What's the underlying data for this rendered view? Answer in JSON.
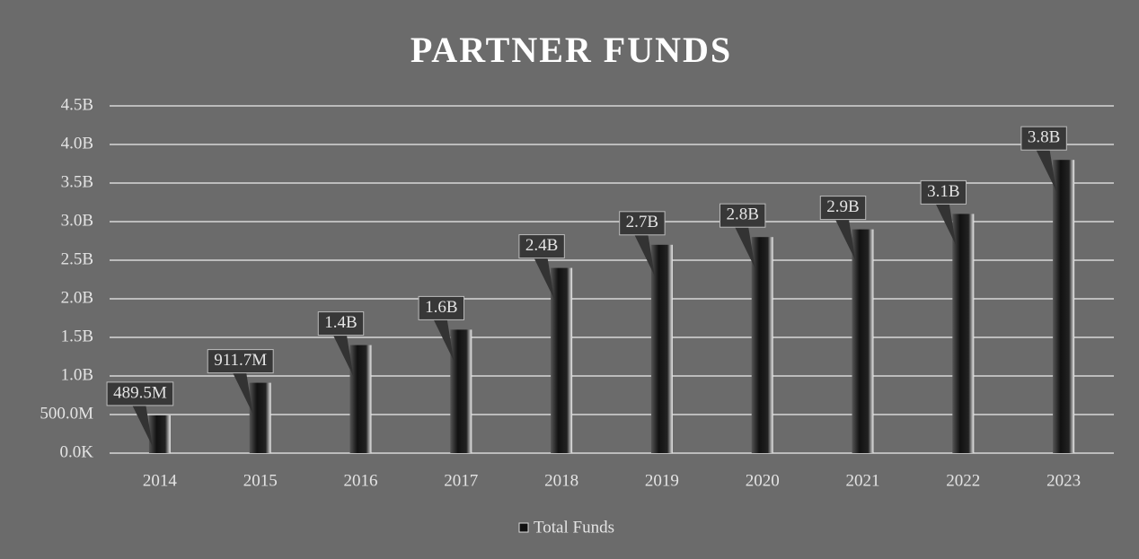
{
  "chart_data": {
    "type": "bar",
    "title": "PARTNER FUNDS",
    "categories": [
      "2014",
      "2015",
      "2016",
      "2017",
      "2018",
      "2019",
      "2020",
      "2021",
      "2022",
      "2023"
    ],
    "series": [
      {
        "name": "Total Funds",
        "color": "#111111",
        "values": [
          489500000,
          911700000,
          1400000000,
          1600000000,
          2400000000,
          2700000000,
          2800000000,
          2900000000,
          3100000000,
          3800000000
        ],
        "value_labels": [
          "489.5M",
          "911.7M",
          "1.4B",
          "1.6B",
          "2.4B",
          "2.7B",
          "2.8B",
          "2.9B",
          "3.1B",
          "3.8B"
        ]
      }
    ],
    "ylim": [
      0,
      4500000000
    ],
    "yticks": [
      {
        "value": 0,
        "label": "0.0K"
      },
      {
        "value": 500000000,
        "label": "500.0M"
      },
      {
        "value": 1000000000,
        "label": "1.0B"
      },
      {
        "value": 1500000000,
        "label": "1.5B"
      },
      {
        "value": 2000000000,
        "label": "2.0B"
      },
      {
        "value": 2500000000,
        "label": "2.5B"
      },
      {
        "value": 3000000000,
        "label": "3.0B"
      },
      {
        "value": 3500000000,
        "label": "3.5B"
      },
      {
        "value": 4000000000,
        "label": "4.0B"
      },
      {
        "value": 4500000000,
        "label": "4.5B"
      }
    ],
    "grid": true,
    "legend": "bottom"
  }
}
